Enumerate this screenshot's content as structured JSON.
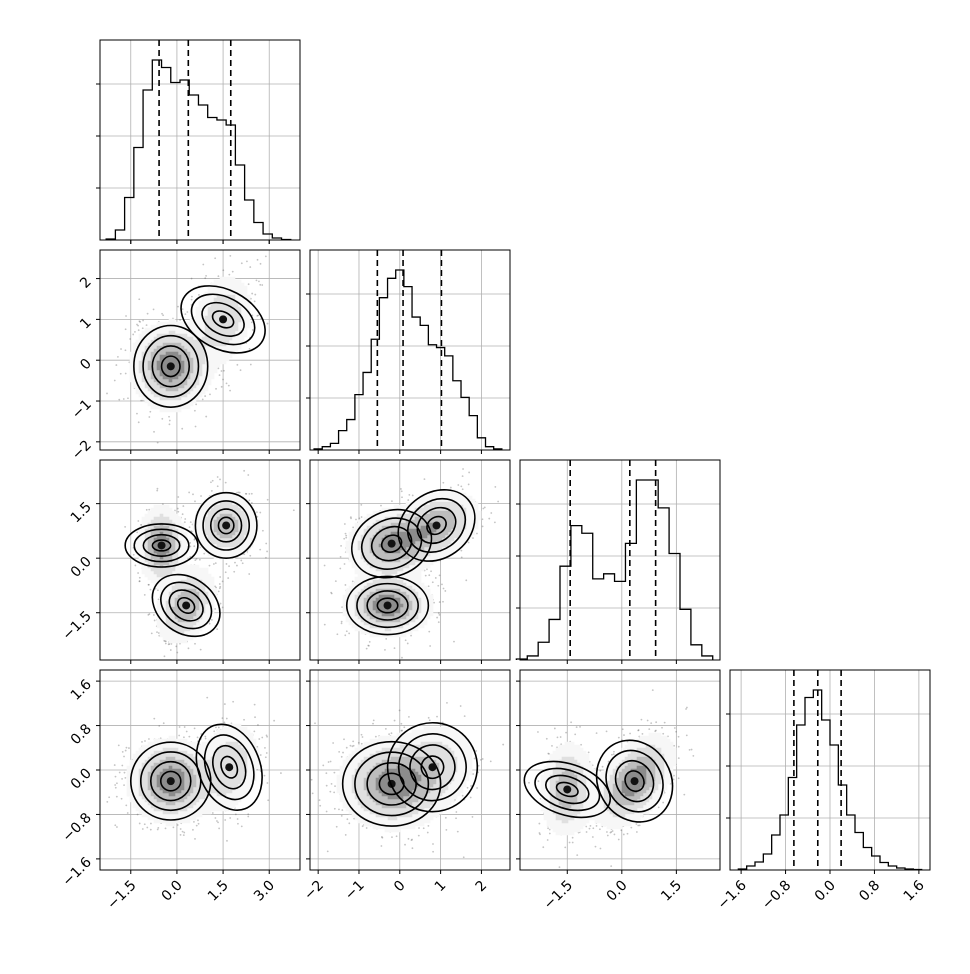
{
  "chart_data": {
    "type": "corner",
    "dimensions": 4,
    "grid": true,
    "axes": [
      {
        "index": 0,
        "range": [
          -2.5,
          4.0
        ],
        "ticks": [
          -1.5,
          0.0,
          1.5,
          3.0
        ],
        "tick_labels": [
          "−1.5",
          "0.0",
          "1.5",
          "3.0"
        ],
        "quantiles": [
          -0.58,
          0.37,
          1.75
        ]
      },
      {
        "index": 1,
        "range": [
          -2.2,
          2.7
        ],
        "ticks": [
          -2,
          -1,
          0,
          1,
          2
        ],
        "tick_labels": [
          "−2",
          "−1",
          "0",
          "1",
          "2"
        ],
        "quantiles": [
          -0.55,
          0.08,
          1.02
        ]
      },
      {
        "index": 2,
        "range": [
          -2.8,
          2.7
        ],
        "ticks": [
          -1.5,
          0.0,
          1.5
        ],
        "tick_labels": [
          "−1.5",
          "0.0",
          "1.5"
        ],
        "quantiles": [
          -1.42,
          0.22,
          0.93
        ]
      },
      {
        "index": 3,
        "range": [
          -1.8,
          1.8
        ],
        "ticks": [
          -1.6,
          -0.8,
          0.0,
          0.8,
          1.6
        ],
        "tick_labels": [
          "−1.6",
          "−0.8",
          "0.0",
          "0.8",
          "1.6"
        ],
        "quantiles": [
          -0.65,
          -0.22,
          0.2
        ]
      }
    ],
    "histograms": [
      {
        "dim": 0,
        "bins": [
          -2.3,
          -2.0,
          -1.7,
          -1.4,
          -1.1,
          -0.8,
          -0.5,
          -0.2,
          0.1,
          0.4,
          0.7,
          1.0,
          1.3,
          1.6,
          1.9,
          2.2,
          2.5,
          2.8,
          3.1,
          3.4,
          3.7
        ],
        "counts": [
          2,
          20,
          85,
          185,
          300,
          360,
          345,
          315,
          320,
          290,
          270,
          245,
          240,
          230,
          150,
          80,
          35,
          12,
          4,
          1
        ]
      },
      {
        "dim": 1,
        "bins": [
          -2.1,
          -1.9,
          -1.7,
          -1.5,
          -1.3,
          -1.1,
          -0.9,
          -0.7,
          -0.5,
          -0.3,
          -0.1,
          0.1,
          0.3,
          0.5,
          0.7,
          0.9,
          1.1,
          1.3,
          1.5,
          1.7,
          1.9,
          2.1,
          2.3,
          2.5
        ],
        "counts": [
          2,
          6,
          12,
          35,
          55,
          100,
          140,
          200,
          275,
          310,
          325,
          295,
          240,
          225,
          190,
          185,
          170,
          125,
          95,
          62,
          22,
          6,
          2
        ]
      },
      {
        "dim": 2,
        "bins": [
          -2.9,
          -2.6,
          -2.3,
          -2.0,
          -1.7,
          -1.4,
          -1.1,
          -0.8,
          -0.5,
          -0.2,
          0.1,
          0.4,
          0.7,
          1.0,
          1.3,
          1.6,
          1.9,
          2.2,
          2.5
        ],
        "counts": [
          2,
          8,
          35,
          80,
          185,
          265,
          250,
          160,
          170,
          155,
          230,
          355,
          355,
          300,
          210,
          100,
          30,
          8
        ]
      },
      {
        "dim": 3,
        "bins": [
          -1.65,
          -1.5,
          -1.35,
          -1.2,
          -1.05,
          -0.9,
          -0.75,
          -0.6,
          -0.45,
          -0.3,
          -0.15,
          0.0,
          0.15,
          0.3,
          0.45,
          0.6,
          0.75,
          0.9,
          1.05,
          1.2,
          1.35,
          1.5,
          1.65
        ],
        "counts": [
          2,
          8,
          16,
          32,
          70,
          110,
          185,
          290,
          345,
          360,
          300,
          250,
          170,
          110,
          75,
          45,
          28,
          15,
          8,
          4,
          2,
          1
        ]
      }
    ],
    "pairs": [
      {
        "x": 0,
        "y": 1,
        "modes": [
          {
            "cx": -0.2,
            "cy": -0.15,
            "sx": 0.6,
            "sy": 0.5,
            "rho": 0.0,
            "w": 0.7
          },
          {
            "cx": 1.5,
            "cy": 1.0,
            "sx": 0.48,
            "sy": 0.55,
            "rho": 0.2,
            "w": 0.3
          }
        ]
      },
      {
        "x": 0,
        "y": 2,
        "modes": [
          {
            "cx": -0.5,
            "cy": 0.35,
            "sx": 0.35,
            "sy": 0.5,
            "rho": 0.0,
            "w": 0.35
          },
          {
            "cx": 0.3,
            "cy": -1.3,
            "sx": 0.45,
            "sy": 0.5,
            "rho": 0.3,
            "w": 0.35
          },
          {
            "cx": 1.6,
            "cy": 0.9,
            "sx": 0.5,
            "sy": 0.45,
            "rho": 0.0,
            "w": 0.3
          }
        ]
      },
      {
        "x": 0,
        "y": 3,
        "modes": [
          {
            "cx": -0.2,
            "cy": -0.2,
            "sx": 0.65,
            "sy": 0.35,
            "rho": 0.0,
            "w": 0.7
          },
          {
            "cx": 1.7,
            "cy": 0.05,
            "sx": 0.5,
            "sy": 0.4,
            "rho": 0.2,
            "w": 0.3
          }
        ]
      },
      {
        "x": 1,
        "y": 2,
        "modes": [
          {
            "cx": -0.2,
            "cy": 0.4,
            "sx": 0.5,
            "sy": 0.45,
            "rho": 0.1,
            "w": 0.35
          },
          {
            "cx": -0.3,
            "cy": -1.3,
            "sx": 0.5,
            "sy": 0.4,
            "rho": 0.0,
            "w": 0.35
          },
          {
            "cx": 0.9,
            "cy": 0.9,
            "sx": 0.5,
            "sy": 0.45,
            "rho": 0.3,
            "w": 0.3
          }
        ]
      },
      {
        "x": 1,
        "y": 3,
        "modes": [
          {
            "cx": -0.2,
            "cy": -0.25,
            "sx": 0.6,
            "sy": 0.38,
            "rho": 0.0,
            "w": 0.7
          },
          {
            "cx": 0.8,
            "cy": 0.05,
            "sx": 0.55,
            "sy": 0.4,
            "rho": 0.2,
            "w": 0.3
          }
        ]
      },
      {
        "x": 2,
        "y": 3,
        "modes": [
          {
            "cx": -1.5,
            "cy": -0.35,
            "sx": 0.35,
            "sy": 0.4,
            "rho": 0.1,
            "w": 0.35
          },
          {
            "cx": 0.35,
            "cy": -0.2,
            "sx": 0.5,
            "sy": 0.38,
            "rho": 0.5,
            "w": 0.65
          }
        ]
      }
    ]
  }
}
